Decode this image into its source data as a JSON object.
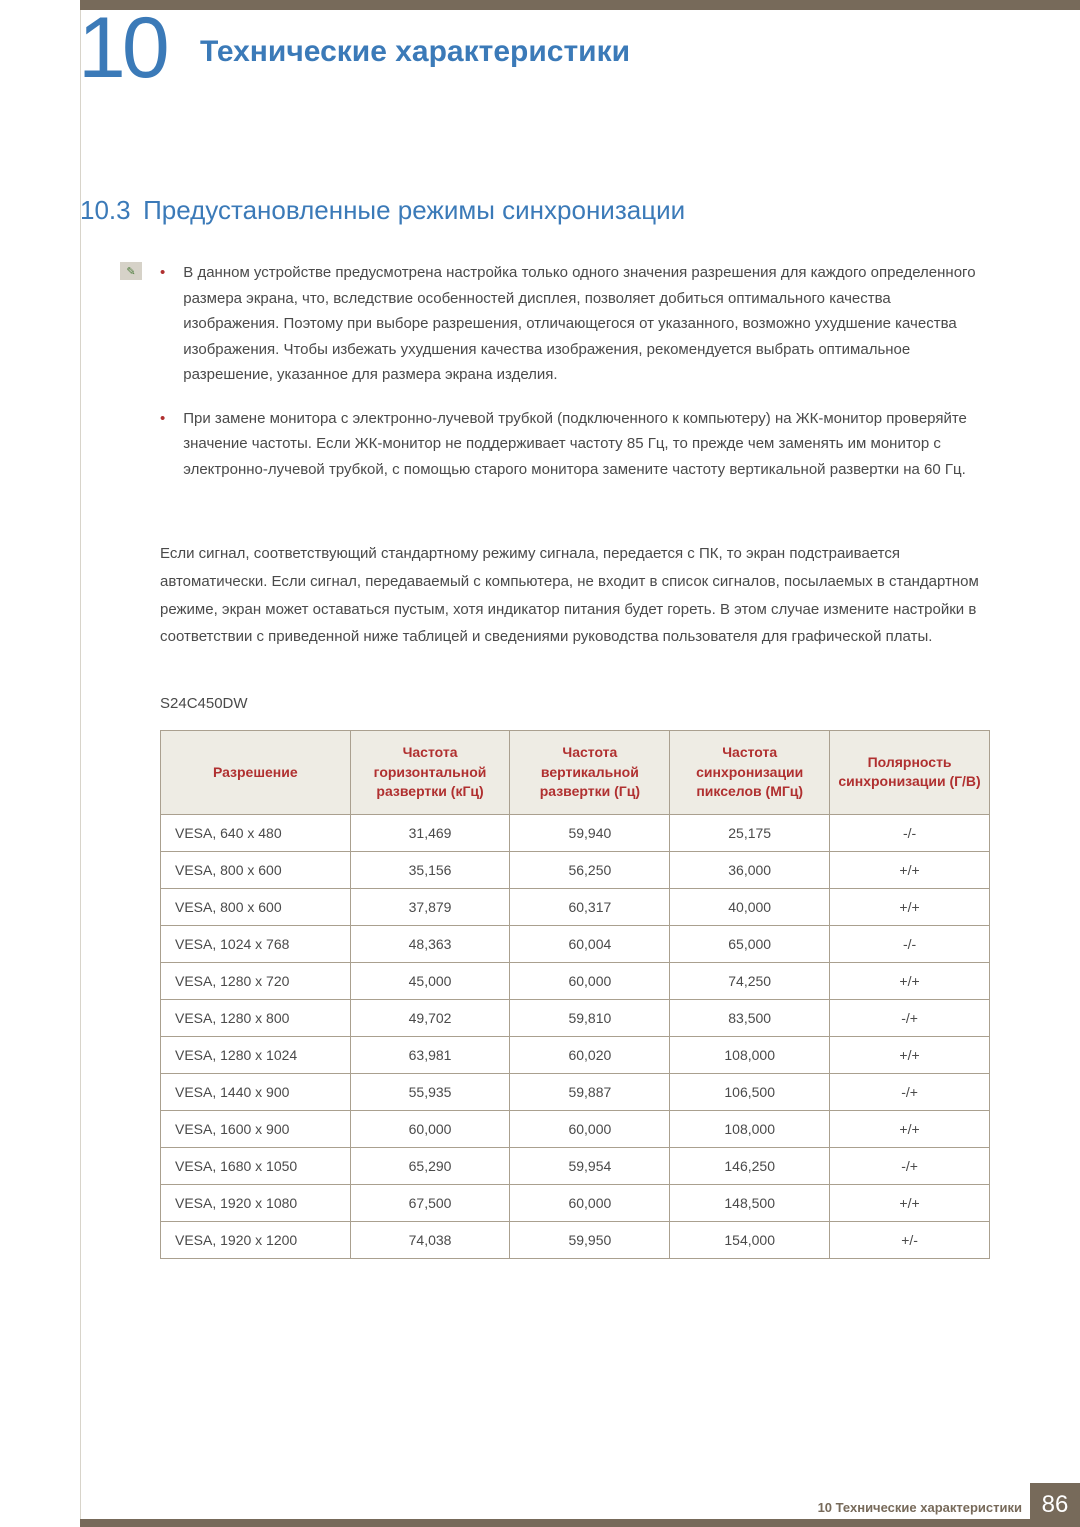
{
  "chapter": {
    "number": "10",
    "title": "Технические характеристики"
  },
  "section": {
    "number": "10.3",
    "title": "Предустановленные режимы синхронизации"
  },
  "notes": {
    "bullet1": "В данном устройстве предусмотрена настройка только одного значения разрешения для каждого определенного размера экрана, что, вследствие особенностей дисплея, позволяет добиться оптимального качества изображения. Поэтому при выборе разрешения, отличающегося от указанного, возможно ухудшение качества изображения. Чтобы избежать ухудшения качества изображения, рекомендуется выбрать оптимальное разрешение, указанное для размера экрана изделия.",
    "bullet2": "При замене монитора с электронно-лучевой трубкой (подключенного к компьютеру) на ЖК-монитор проверяйте значение частоты. Если ЖК-монитор не поддерживает частоту 85 Гц, то прежде чем заменять им монитор с электронно-лучевой трубкой, с помощью старого монитора замените частоту вертикальной развертки на 60 Гц."
  },
  "body_para": "Если сигнал, соответствующий стандартному режиму сигнала, передается с ПК, то экран подстраивается автоматически. Если сигнал, передаваемый с компьютера, не входит в список сигналов, посылаемых в стандартном режиме, экран может оставаться пустым, хотя индикатор питания будет гореть. В этом случае измените настройки в соответствии с приведенной ниже таблицей и сведениями руководства пользователя для графической платы.",
  "model": "S24C450DW",
  "table": {
    "columns": [
      "Разрешение",
      "Частота горизонтальной развертки (кГц)",
      "Частота вертикальной развертки (Гц)",
      "Частота синхронизации пикселов (МГц)",
      "Полярность синхронизации (Г/В)"
    ],
    "rows": [
      [
        "VESA, 640 x 480",
        "31,469",
        "59,940",
        "25,175",
        "-/-"
      ],
      [
        "VESA, 800 x 600",
        "35,156",
        "56,250",
        "36,000",
        "+/+"
      ],
      [
        "VESA, 800 x 600",
        "37,879",
        "60,317",
        "40,000",
        "+/+"
      ],
      [
        "VESA, 1024 x 768",
        "48,363",
        "60,004",
        "65,000",
        "-/-"
      ],
      [
        "VESA, 1280 x 720",
        "45,000",
        "60,000",
        "74,250",
        "+/+"
      ],
      [
        "VESA, 1280 x 800",
        "49,702",
        "59,810",
        "83,500",
        "-/+"
      ],
      [
        "VESA, 1280 x 1024",
        "63,981",
        "60,020",
        "108,000",
        "+/+"
      ],
      [
        "VESA, 1440 x 900",
        "55,935",
        "59,887",
        "106,500",
        "-/+"
      ],
      [
        "VESA, 1600 x 900",
        "60,000",
        "60,000",
        "108,000",
        "+/+"
      ],
      [
        "VESA, 1680 x 1050",
        "65,290",
        "59,954",
        "146,250",
        "-/+"
      ],
      [
        "VESA, 1920 x 1080",
        "67,500",
        "60,000",
        "148,500",
        "+/+"
      ],
      [
        "VESA, 1920 x 1200",
        "74,038",
        "59,950",
        "154,000",
        "+/-"
      ]
    ]
  },
  "footer": {
    "text": "10 Технические характеристики",
    "page": "86"
  }
}
